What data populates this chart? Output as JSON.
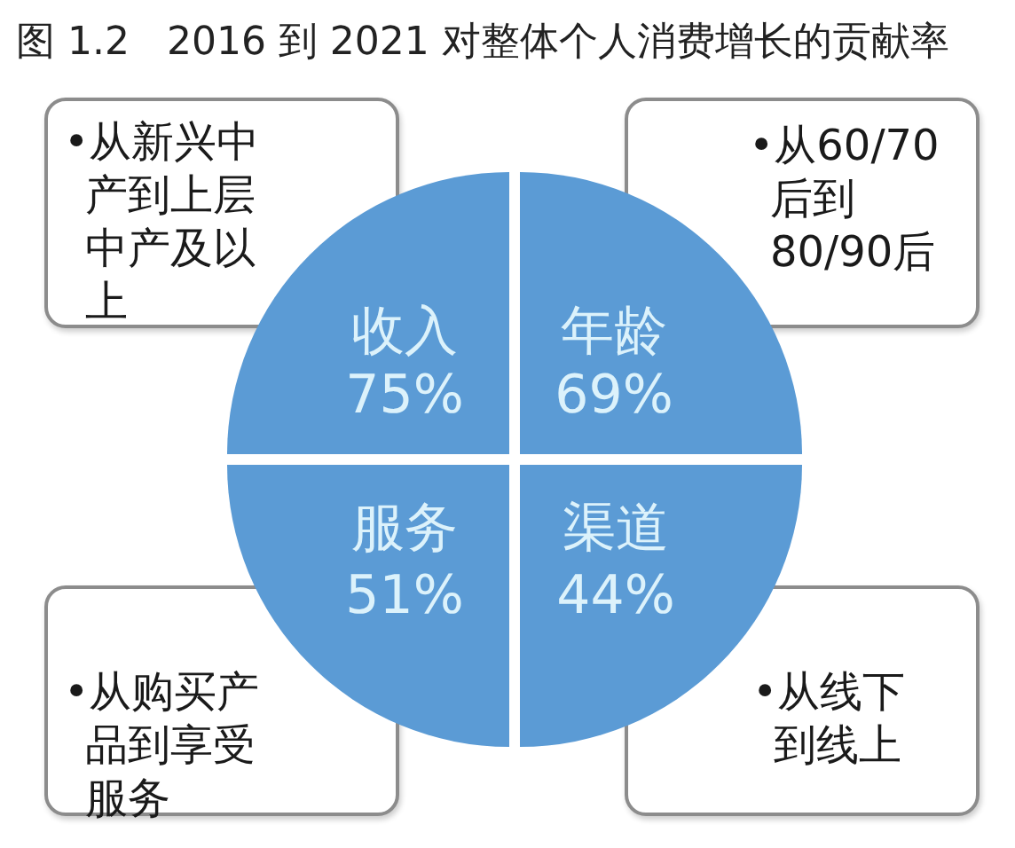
{
  "chart_data": {
    "type": "other",
    "title": "图 1.2   2016 到 2021 对整体个人消费增长的贡献率",
    "categories": [
      "收入",
      "年龄",
      "服务",
      "渠道"
    ],
    "values": [
      75,
      69,
      51,
      44
    ],
    "value_labels": [
      "75%",
      "69%",
      "51%",
      "44%"
    ],
    "color": "#5b9bd5",
    "annotations": [
      "•从新兴中产到上层中产及以上",
      "•从60/70后到80/90后",
      "•从购买产品到享受服务",
      "•从线下到线上"
    ]
  }
}
